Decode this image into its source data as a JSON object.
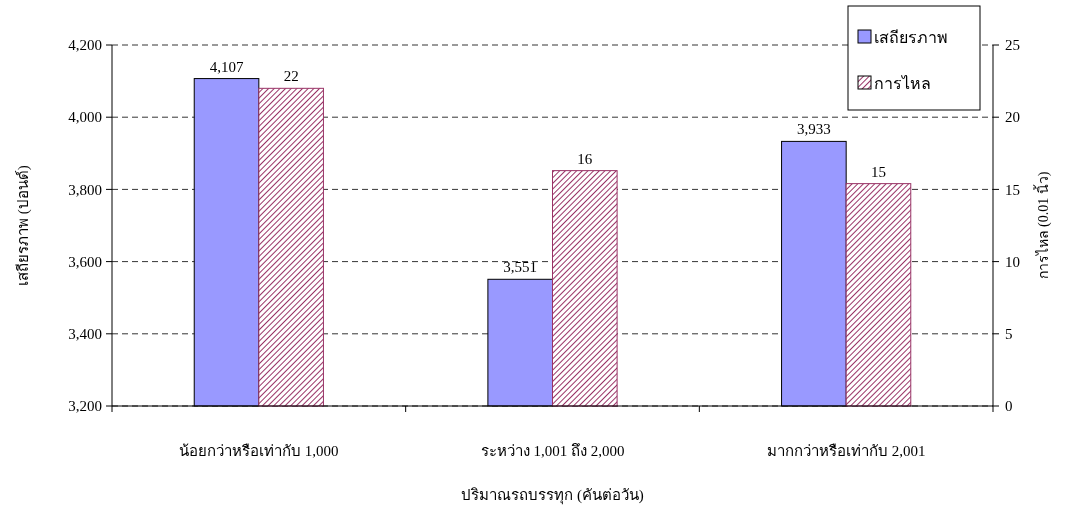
{
  "chart_data": {
    "type": "bar",
    "categories": [
      "น้อยกว่าหรือเท่ากับ 1,000",
      "ระหว่าง 1,001 ถึง 2,000",
      "มากกว่าหรือเท่ากับ 2,001"
    ],
    "xlabel": "ปริมาณรถบรรทุก (คันต่อวัน)",
    "ylabel": "เสถียรภาพ (ปอนด์)",
    "y2label": "การไหล (0.01 นิ้ว)",
    "series": [
      {
        "name": "เสถียรภาพ",
        "color": "#9999ff",
        "values": [
          4107,
          3551,
          3933
        ],
        "value_labels": [
          "4,107",
          "3,551",
          "3,933"
        ]
      },
      {
        "name": "การไหล",
        "color": "#993366",
        "values": [
          22,
          16.3,
          15.4
        ],
        "value_labels": [
          "22",
          "16",
          "15"
        ],
        "axis": "y2"
      }
    ],
    "ylim": [
      3200,
      4200
    ],
    "yticks": [
      {
        "value": 3200,
        "label": "3,200"
      },
      {
        "value": 3400,
        "label": "3,400"
      },
      {
        "value": 3600,
        "label": "3,600"
      },
      {
        "value": 3800,
        "label": "3,800"
      },
      {
        "value": 4000,
        "label": "4,000"
      },
      {
        "value": 4200,
        "label": "4,200"
      }
    ],
    "y2lim": [
      0,
      25
    ],
    "y2ticks": [
      0,
      5,
      10,
      15,
      20,
      25
    ],
    "grid": "y",
    "legend": "top right"
  }
}
